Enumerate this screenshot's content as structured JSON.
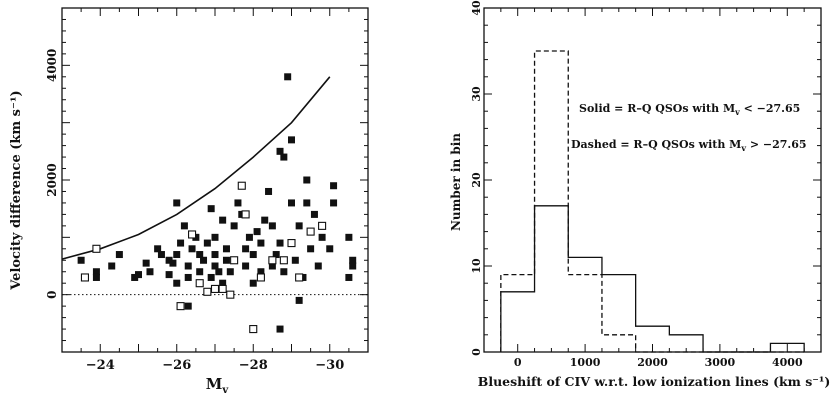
{
  "chart_data": [
    {
      "type": "scatter",
      "title": "",
      "xlabel": "M",
      "xlabel_subscript": "v",
      "ylabel": "Velocity difference (km s⁻¹)",
      "xlim": [
        -23,
        -31
      ],
      "ylim": [
        -1000,
        5000
      ],
      "x_reversed": true,
      "x_ticks": [
        -24,
        -26,
        -28,
        -30
      ],
      "y_ticks": [
        0,
        2000,
        4000
      ],
      "grid": false,
      "series": [
        {
          "marker": "filled-square",
          "points": [
            [
              -23.5,
              600
            ],
            [
              -23.9,
              400
            ],
            [
              -23.9,
              300
            ],
            [
              -24.3,
              500
            ],
            [
              -24.5,
              700
            ],
            [
              -24.9,
              300
            ],
            [
              -25.0,
              350
            ],
            [
              -25.2,
              550
            ],
            [
              -25.3,
              400
            ],
            [
              -25.5,
              800
            ],
            [
              -25.6,
              700
            ],
            [
              -25.8,
              350
            ],
            [
              -25.8,
              600
            ],
            [
              -25.9,
              550
            ],
            [
              -26.0,
              700
            ],
            [
              -26.0,
              200
            ],
            [
              -26.0,
              1600
            ],
            [
              -26.1,
              900
            ],
            [
              -26.2,
              1200
            ],
            [
              -26.3,
              500
            ],
            [
              -26.3,
              300
            ],
            [
              -26.4,
              800
            ],
            [
              -26.5,
              1000
            ],
            [
              -26.6,
              700
            ],
            [
              -26.6,
              400
            ],
            [
              -26.7,
              600
            ],
            [
              -26.8,
              900
            ],
            [
              -26.9,
              300
            ],
            [
              -26.9,
              1500
            ],
            [
              -27.0,
              700
            ],
            [
              -27.0,
              500
            ],
            [
              -27.0,
              1000
            ],
            [
              -27.1,
              400
            ],
            [
              -27.2,
              1300
            ],
            [
              -27.2,
              200
            ],
            [
              -27.3,
              800
            ],
            [
              -27.3,
              600
            ],
            [
              -27.4,
              400
            ],
            [
              -27.5,
              1200
            ],
            [
              -27.6,
              1600
            ],
            [
              -27.7,
              1400
            ],
            [
              -27.8,
              500
            ],
            [
              -27.8,
              800
            ],
            [
              -27.9,
              1000
            ],
            [
              -28.0,
              700
            ],
            [
              -28.0,
              200
            ],
            [
              -28.1,
              1100
            ],
            [
              -28.2,
              400
            ],
            [
              -28.2,
              900
            ],
            [
              -28.3,
              1300
            ],
            [
              -28.4,
              1800
            ],
            [
              -28.5,
              1200
            ],
            [
              -28.5,
              500
            ],
            [
              -28.6,
              700
            ],
            [
              -28.7,
              900
            ],
            [
              -28.7,
              2500
            ],
            [
              -28.8,
              400
            ],
            [
              -28.8,
              2400
            ],
            [
              -28.9,
              3800
            ],
            [
              -29.0,
              2700
            ],
            [
              -29.0,
              1600
            ],
            [
              -29.1,
              600
            ],
            [
              -29.2,
              1200
            ],
            [
              -29.3,
              300
            ],
            [
              -29.4,
              1600
            ],
            [
              -29.4,
              2000
            ],
            [
              -29.5,
              800
            ],
            [
              -29.6,
              1400
            ],
            [
              -29.7,
              500
            ],
            [
              -29.8,
              1000
            ],
            [
              -30.0,
              800
            ],
            [
              -30.1,
              1900
            ],
            [
              -30.1,
              1600
            ],
            [
              -30.5,
              1000
            ],
            [
              -30.6,
              600
            ],
            [
              -30.6,
              500
            ],
            [
              -30.5,
              300
            ],
            [
              -28.7,
              -600
            ],
            [
              -26.3,
              -200
            ],
            [
              -29.2,
              -100
            ]
          ]
        },
        {
          "marker": "open-square",
          "points": [
            [
              -23.9,
              800
            ],
            [
              -23.6,
              300
            ],
            [
              -26.4,
              1050
            ],
            [
              -26.6,
              200
            ],
            [
              -26.8,
              50
            ],
            [
              -27.0,
              100
            ],
            [
              -27.2,
              100
            ],
            [
              -27.4,
              0
            ],
            [
              -27.7,
              1900
            ],
            [
              -27.8,
              1400
            ],
            [
              -28.0,
              -600
            ],
            [
              -28.2,
              300
            ],
            [
              -28.5,
              600
            ],
            [
              -28.8,
              600
            ],
            [
              -29.2,
              300
            ],
            [
              -29.5,
              1100
            ],
            [
              -29.8,
              1200
            ],
            [
              -26.1,
              -200
            ],
            [
              -27.5,
              600
            ],
            [
              -29.0,
              900
            ]
          ]
        }
      ],
      "curve": {
        "style": "solid",
        "x": [
          -23.0,
          -24.0,
          -25.0,
          -26.0,
          -27.0,
          -28.0,
          -29.0,
          -30.0
        ],
        "y": [
          620,
          800,
          1050,
          1400,
          1850,
          2400,
          3000,
          3800
        ]
      },
      "reference_line": {
        "y": 0,
        "style": "dotted"
      }
    },
    {
      "type": "histogram",
      "title": "",
      "xlabel": "Blueshift of CIV w.r.t. low ionization lines (km s⁻¹)",
      "ylabel": "Number in bin",
      "xlim": [
        -500,
        4500
      ],
      "ylim": [
        0,
        40
      ],
      "x_ticks": [
        0,
        1000,
        2000,
        3000,
        4000
      ],
      "y_ticks": [
        0,
        10,
        20,
        30,
        40
      ],
      "grid": false,
      "annotations": [
        {
          "text": "Solid = R–Q QSOs with M",
          "subscript": "v",
          "rest": " < −27.65"
        },
        {
          "text": "Dashed = R–Q QSOs with M",
          "subscript": "v",
          "rest": " > −27.65"
        }
      ],
      "bin_edges": [
        -250,
        250,
        750,
        1250,
        1750,
        2250,
        2750,
        3250,
        3750,
        4250
      ],
      "series": [
        {
          "style": "solid",
          "values": [
            7,
            17,
            11,
            9,
            3,
            2,
            0,
            0,
            1
          ]
        },
        {
          "style": "dashed",
          "values": [
            9,
            35,
            9,
            2,
            0,
            0,
            0,
            0,
            0
          ]
        }
      ]
    }
  ]
}
